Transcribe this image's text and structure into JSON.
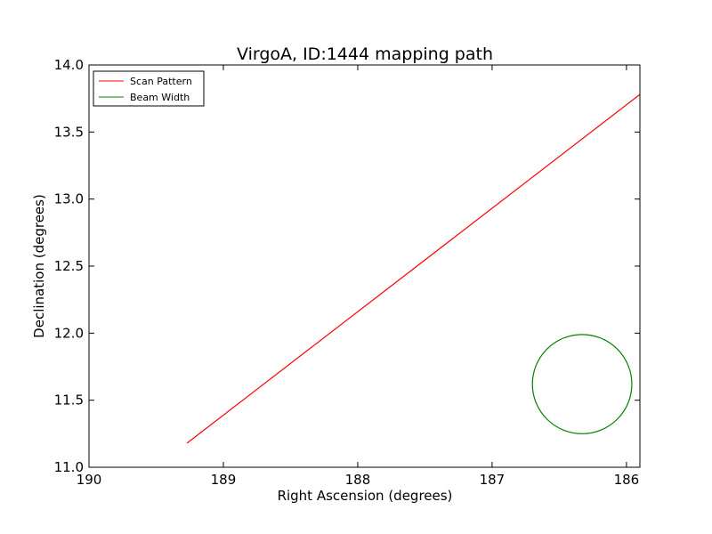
{
  "chart_data": {
    "type": "line",
    "title": "VirgoA, ID:1444 mapping path",
    "xlabel": "Right Ascension (degrees)",
    "ylabel": "Declination (degrees)",
    "xlim": [
      190,
      185.9
    ],
    "ylim": [
      11.0,
      14.0
    ],
    "x_reversed": true,
    "xticks": [
      190,
      189,
      188,
      187,
      186
    ],
    "xtick_labels": [
      "190",
      "189",
      "188",
      "187",
      "186"
    ],
    "yticks": [
      11.0,
      11.5,
      12.0,
      12.5,
      13.0,
      13.5,
      14.0
    ],
    "ytick_labels": [
      "11.0",
      "11.5",
      "12.0",
      "12.5",
      "13.0",
      "13.5",
      "14.0"
    ],
    "grid": false,
    "legend": "top-left",
    "series": [
      {
        "name": "Scan Pattern",
        "color": "#ff0000",
        "x": [
          189.27,
          185.9
        ],
        "y": [
          11.18,
          13.78
        ]
      },
      {
        "name": "Beam Width",
        "color": "#008000",
        "shape": "circle",
        "center": [
          186.33,
          11.62
        ],
        "radius_x": 0.37,
        "radius_y": 0.37
      }
    ]
  }
}
